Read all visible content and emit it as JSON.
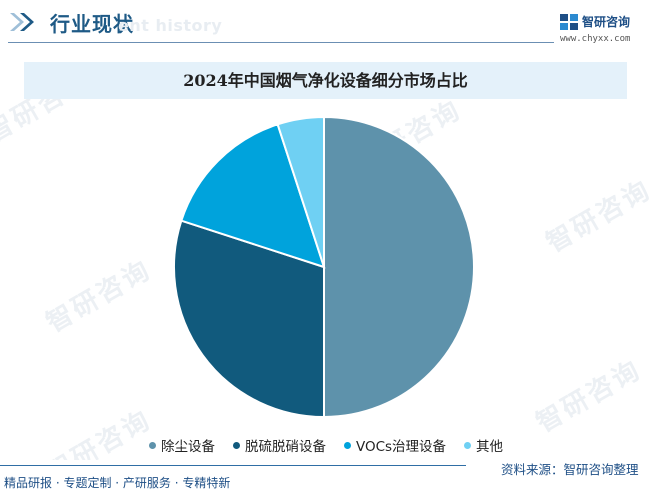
{
  "header": {
    "title": "行业现状",
    "watermark_text": "ent history",
    "icon": "double-chevron-right-icon"
  },
  "logo": {
    "name": "智研咨询",
    "url": "www.chyxx.com",
    "icon": "zhiyan-logo-icon"
  },
  "watermark": {
    "text": "智研咨询"
  },
  "footer": {
    "left_text": "精品研报 · 专题定制 · 产研服务 · 专精特新",
    "source_text": "资料来源：智研咨询整理"
  },
  "colors": {
    "brand": "#1e5a86",
    "title_band": "#e4f1fa"
  },
  "chart_data": {
    "type": "pie",
    "title": "2024年中国烟气净化设备细分市场占比",
    "categories": [
      "除尘设备",
      "脱硫脱硝设备",
      "VOCs治理设备",
      "其他"
    ],
    "values": [
      50,
      30,
      15,
      5
    ],
    "colors": [
      "#5e92ab",
      "#115a7d",
      "#00a3dc",
      "#6fd0f3"
    ],
    "legend_position": "bottom",
    "start_angle": "12 o'clock",
    "direction": "clockwise"
  }
}
